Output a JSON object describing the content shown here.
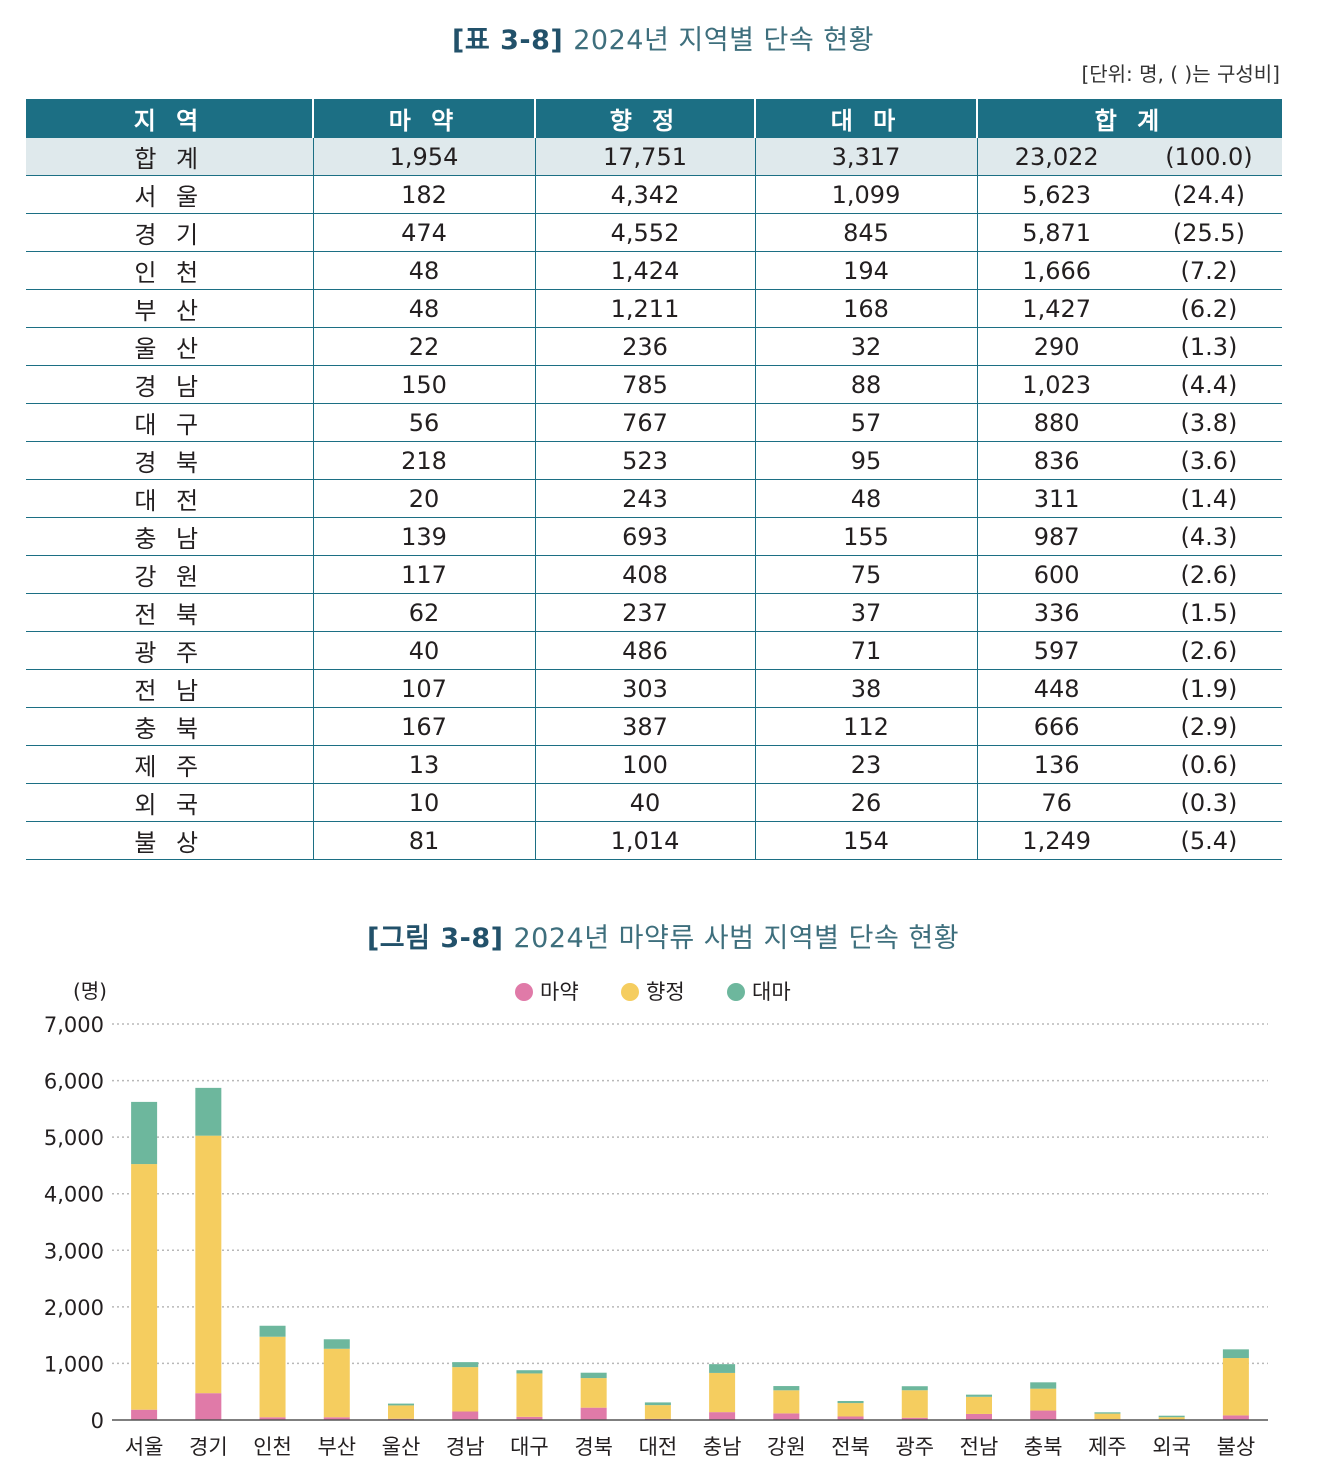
{
  "table_caption": {
    "tag": "[표 3-8]",
    "title": "2024년 지역별 단속 현황"
  },
  "unit_note": "[단위: 명, ( )는 구성비]",
  "table": {
    "headers": [
      "지 역",
      "마 약",
      "향 정",
      "대 마",
      "합 계"
    ],
    "total": {
      "region": "합 계",
      "narcotics": "1,954",
      "psychotropics": "17,751",
      "cannabis": "3,317",
      "sum": "23,022",
      "pct": "(100.0)"
    },
    "rows": [
      {
        "region": "서 울",
        "narcotics": "182",
        "psychotropics": "4,342",
        "cannabis": "1,099",
        "sum": "5,623",
        "pct": "(24.4)"
      },
      {
        "region": "경 기",
        "narcotics": "474",
        "psychotropics": "4,552",
        "cannabis": "845",
        "sum": "5,871",
        "pct": "(25.5)"
      },
      {
        "region": "인 천",
        "narcotics": "48",
        "psychotropics": "1,424",
        "cannabis": "194",
        "sum": "1,666",
        "pct": "(7.2)"
      },
      {
        "region": "부 산",
        "narcotics": "48",
        "psychotropics": "1,211",
        "cannabis": "168",
        "sum": "1,427",
        "pct": "(6.2)"
      },
      {
        "region": "울 산",
        "narcotics": "22",
        "psychotropics": "236",
        "cannabis": "32",
        "sum": "290",
        "pct": "(1.3)"
      },
      {
        "region": "경 남",
        "narcotics": "150",
        "psychotropics": "785",
        "cannabis": "88",
        "sum": "1,023",
        "pct": "(4.4)"
      },
      {
        "region": "대 구",
        "narcotics": "56",
        "psychotropics": "767",
        "cannabis": "57",
        "sum": "880",
        "pct": "(3.8)"
      },
      {
        "region": "경 북",
        "narcotics": "218",
        "psychotropics": "523",
        "cannabis": "95",
        "sum": "836",
        "pct": "(3.6)"
      },
      {
        "region": "대 전",
        "narcotics": "20",
        "psychotropics": "243",
        "cannabis": "48",
        "sum": "311",
        "pct": "(1.4)"
      },
      {
        "region": "충 남",
        "narcotics": "139",
        "psychotropics": "693",
        "cannabis": "155",
        "sum": "987",
        "pct": "(4.3)"
      },
      {
        "region": "강 원",
        "narcotics": "117",
        "psychotropics": "408",
        "cannabis": "75",
        "sum": "600",
        "pct": "(2.6)"
      },
      {
        "region": "전 북",
        "narcotics": "62",
        "psychotropics": "237",
        "cannabis": "37",
        "sum": "336",
        "pct": "(1.5)"
      },
      {
        "region": "광 주",
        "narcotics": "40",
        "psychotropics": "486",
        "cannabis": "71",
        "sum": "597",
        "pct": "(2.6)"
      },
      {
        "region": "전 남",
        "narcotics": "107",
        "psychotropics": "303",
        "cannabis": "38",
        "sum": "448",
        "pct": "(1.9)"
      },
      {
        "region": "충 북",
        "narcotics": "167",
        "psychotropics": "387",
        "cannabis": "112",
        "sum": "666",
        "pct": "(2.9)"
      },
      {
        "region": "제 주",
        "narcotics": "13",
        "psychotropics": "100",
        "cannabis": "23",
        "sum": "136",
        "pct": "(0.6)"
      },
      {
        "region": "외 국",
        "narcotics": "10",
        "psychotropics": "40",
        "cannabis": "26",
        "sum": "76",
        "pct": "(0.3)"
      },
      {
        "region": "불 상",
        "narcotics": "81",
        "psychotropics": "1,014",
        "cannabis": "154",
        "sum": "1,249",
        "pct": "(5.4)"
      }
    ]
  },
  "chart_caption": {
    "tag": "[그림 3-8]",
    "title": "2024년 마약류 사범 지역별 단속 현황"
  },
  "colors": {
    "header": "#1c6f84",
    "narcotics": "#e07aa8",
    "psychotropics": "#f5cd5f",
    "cannabis": "#6db79d",
    "grid": "#b8b8b8"
  },
  "chart_data": {
    "type": "bar",
    "stacked": true,
    "title": "[그림 3-8] 2024년 마약류 사범 지역별 단속 현황",
    "ylabel": "(명)",
    "xlabel": "",
    "ylim": [
      0,
      7000
    ],
    "yticks": [
      0,
      1000,
      2000,
      3000,
      4000,
      5000,
      6000,
      7000
    ],
    "ytick_labels": [
      "0",
      "1,000",
      "2,000",
      "3,000",
      "4,000",
      "5,000",
      "6,000",
      "7,000"
    ],
    "legend_position": "top-center",
    "categories": [
      "서울",
      "경기",
      "인천",
      "부산",
      "울산",
      "경남",
      "대구",
      "경북",
      "대전",
      "충남",
      "강원",
      "전북",
      "광주",
      "전남",
      "충북",
      "제주",
      "외국",
      "불상"
    ],
    "series": [
      {
        "name": "마약",
        "color": "#e07aa8",
        "values": [
          182,
          474,
          48,
          48,
          22,
          150,
          56,
          218,
          20,
          139,
          117,
          62,
          40,
          107,
          167,
          13,
          10,
          81
        ]
      },
      {
        "name": "향정",
        "color": "#f5cd5f",
        "values": [
          4342,
          4552,
          1424,
          1211,
          236,
          785,
          767,
          523,
          243,
          693,
          408,
          237,
          486,
          303,
          387,
          100,
          40,
          1014
        ]
      },
      {
        "name": "대마",
        "color": "#6db79d",
        "values": [
          1099,
          845,
          194,
          168,
          32,
          88,
          57,
          95,
          48,
          155,
          75,
          37,
          71,
          38,
          112,
          23,
          26,
          154
        ]
      }
    ]
  }
}
